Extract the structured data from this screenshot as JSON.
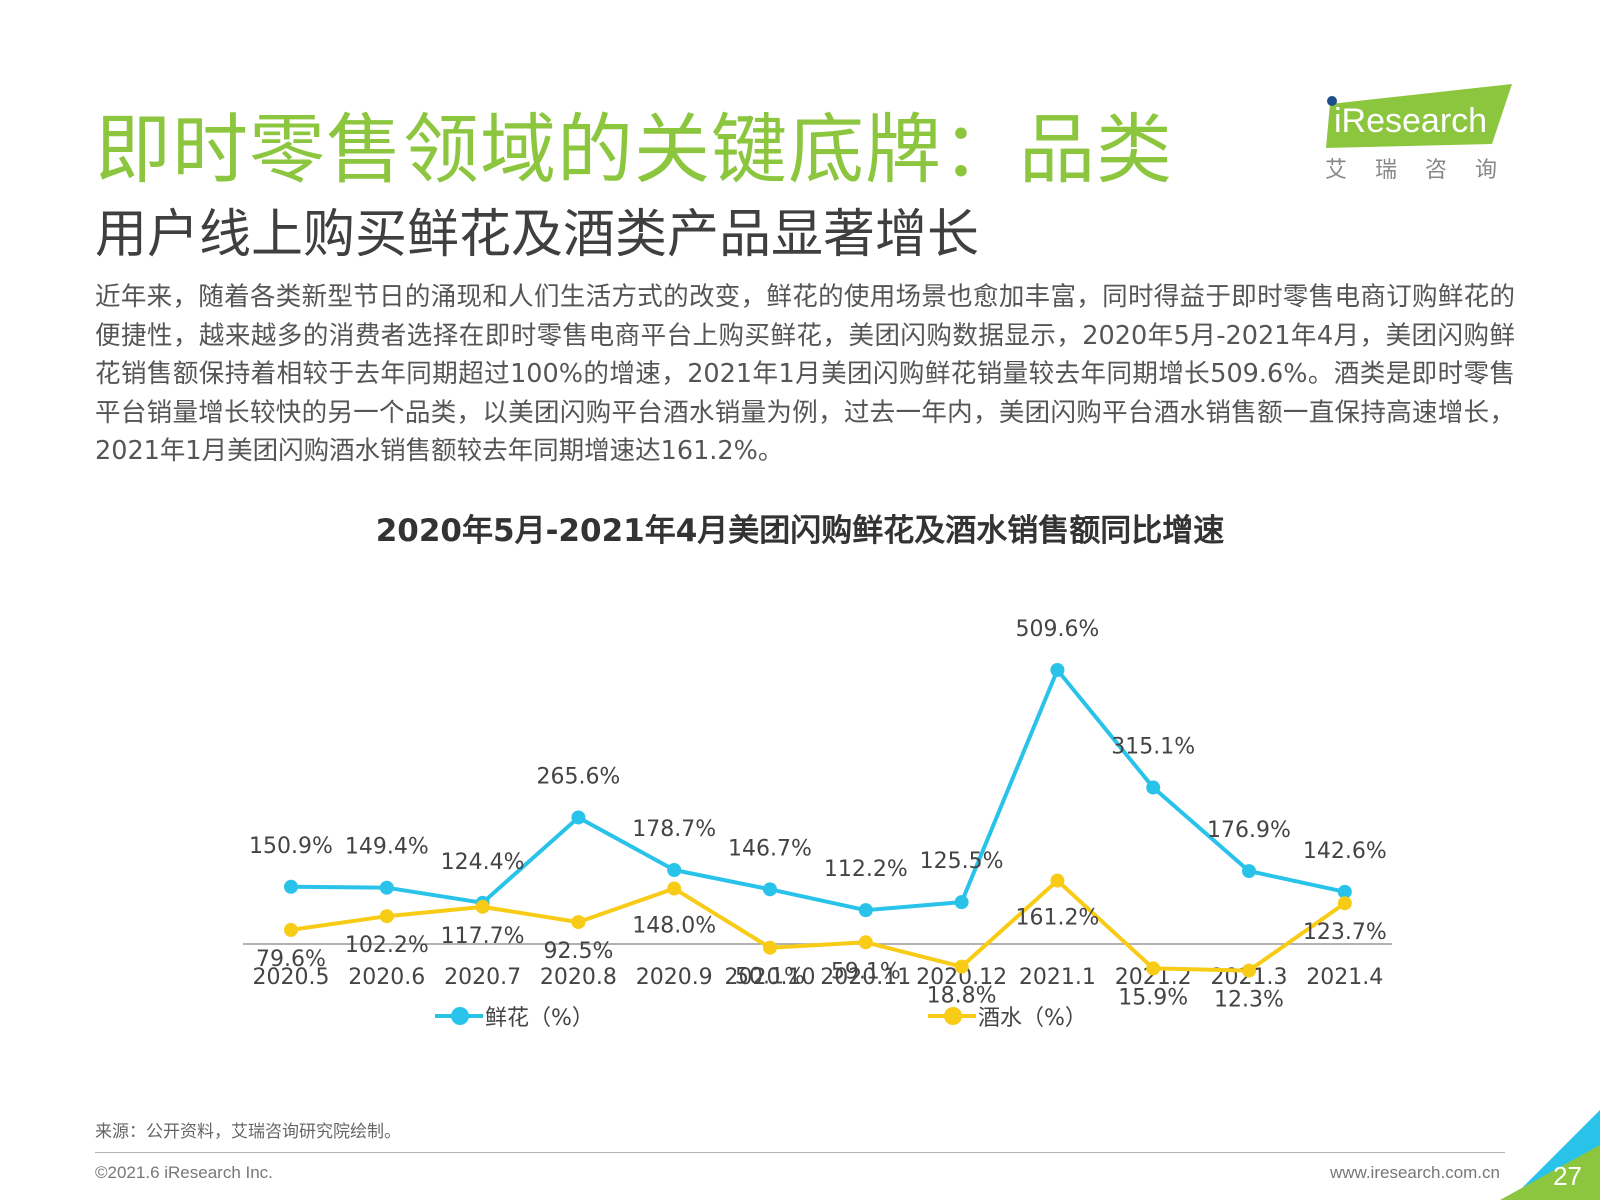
{
  "header": {
    "title": "即时零售领域的关键底牌：品类",
    "subtitle": "用户线上购买鲜花及酒类产品显著增长"
  },
  "logo": {
    "brand": "iResearch",
    "cn_name": "艾瑞咨询",
    "color": "#8cc63f"
  },
  "body_text": "近年来，随着各类新型节日的涌现和人们生活方式的改变，鲜花的使用场景也愈加丰富，同时得益于即时零售电商订购鲜花的便捷性，越来越多的消费者选择在即时零售电商平台上购买鲜花，美团闪购数据显示，2020年5月-2021年4月，美团闪购鲜花销售额保持着相较于去年同期超过100%的增速，2021年1月美团闪购鲜花销量较去年同期增长509.6%。酒类是即时零售平台销量增长较快的另一个品类，以美团闪购平台酒水销量为例，过去一年内，美团闪购平台酒水销售额一直保持高速增长，2021年1月美团闪购酒水销售额较去年同期增速达161.2%。",
  "chart_data": {
    "type": "line",
    "title": "2020年5月-2021年4月美团闪购鲜花及酒水销售额同比增速",
    "categories": [
      "2020.5",
      "2020.6",
      "2020.7",
      "2020.8",
      "2020.9",
      "2020.10",
      "2020.11",
      "2020.12",
      "2021.1",
      "2021.2",
      "2021.3",
      "2021.4"
    ],
    "series": [
      {
        "name": "鲜花（%）",
        "color": "#29c3ea",
        "values": [
          150.9,
          149.4,
          124.4,
          265.6,
          178.7,
          146.7,
          112.2,
          125.5,
          509.6,
          315.1,
          176.9,
          142.6
        ],
        "labels": [
          "150.9%",
          "149.4%",
          "124.4%",
          "265.6%",
          "178.7%",
          "146.7%",
          "112.2%",
          "125.5%",
          "509.6%",
          "315.1%",
          "176.9%",
          "142.6%"
        ]
      },
      {
        "name": "酒水（%）",
        "color": "#f7cb16",
        "values": [
          79.6,
          102.2,
          117.7,
          92.5,
          148.0,
          50.1,
          59.1,
          18.8,
          161.2,
          15.9,
          12.3,
          123.7
        ],
        "labels": [
          "79.6%",
          "102.2%",
          "117.7%",
          "92.5%",
          "148.0%",
          "50.1%",
          "59.1%",
          "18.8%",
          "161.2%",
          "15.9%",
          "12.3%",
          "123.7%"
        ]
      }
    ],
    "xlabel": "",
    "ylabel": "",
    "grid": false,
    "legend_position": "bottom"
  },
  "footer": {
    "source": "来源：公开资料，艾瑞咨询研究院绘制。",
    "copyright": "©2021.6 iResearch Inc.",
    "website": "www.iresearch.com.cn",
    "page_number": "27"
  }
}
